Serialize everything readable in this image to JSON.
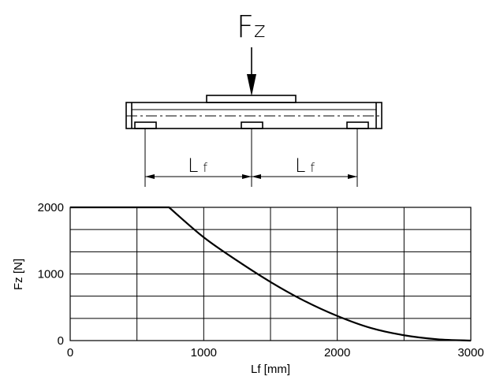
{
  "diagram": {
    "force_label_main": "F",
    "force_label_sub": "z",
    "dimension_label_main": "L",
    "dimension_label_sub": "f"
  },
  "chart_data": {
    "type": "line",
    "xlabel": "Lf [mm]",
    "ylabel": "Fz [N]",
    "xlim": [
      0,
      3000
    ],
    "ylim": [
      0,
      2000
    ],
    "x_ticks": [
      0,
      1000,
      2000,
      3000
    ],
    "y_ticks": [
      0,
      1000,
      2000
    ],
    "x_gridlines": [
      0,
      500,
      1000,
      1500,
      2000,
      2500,
      3000
    ],
    "y_gridlines": [
      0,
      333,
      667,
      1000,
      1333,
      1667,
      2000
    ],
    "grid": true,
    "series": [
      {
        "x": [
          0,
          740,
          1000,
          1250,
          1500,
          1750,
          2000,
          2250,
          2500,
          2750,
          3000
        ],
        "y": [
          2000,
          2000,
          1550,
          1200,
          880,
          600,
          370,
          190,
          80,
          20,
          0
        ]
      }
    ]
  }
}
